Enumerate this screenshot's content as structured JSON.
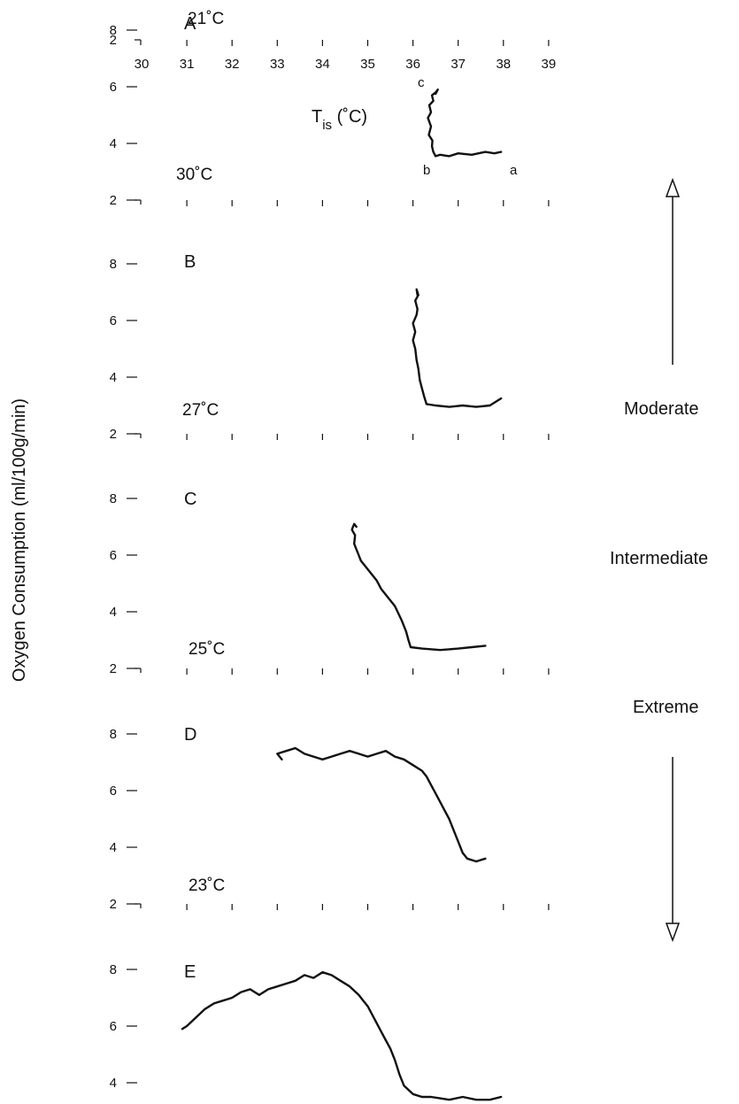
{
  "chart_data": {
    "type": "line",
    "ylabel": "Oxygen Consumption (ml/100g/min)",
    "xlabel": {
      "main": "T",
      "subscript": "is",
      "unit": " (˚C)"
    },
    "x_ticks": [
      "30",
      "31",
      "32",
      "33",
      "34",
      "35",
      "36",
      "37",
      "38",
      "39"
    ],
    "x_range": [
      30,
      39
    ],
    "y_ticks": [
      "2",
      "4",
      "6",
      "8"
    ],
    "y_range": [
      2,
      8.5
    ],
    "grid": false,
    "legend": "none",
    "line_color": "#111111",
    "side_labels": [
      "Moderate",
      "Intermediate",
      "Extreme"
    ],
    "point_labels": [
      "a",
      "b",
      "c"
    ],
    "panels": [
      {
        "letter": "A",
        "ambient": "21˚C",
        "series": [
          {
            "x": [
              37.95,
              37.8,
              37.6,
              37.3,
              37.0,
              36.8,
              36.6,
              36.5,
              36.45,
              36.42,
              36.43,
              36.35,
              36.4,
              36.33,
              36.4,
              36.36,
              36.45,
              36.42,
              36.5,
              36.55,
              36.5
            ],
            "y": [
              3.7,
              3.65,
              3.7,
              3.6,
              3.65,
              3.55,
              3.6,
              3.55,
              3.7,
              3.9,
              4.1,
              4.3,
              4.6,
              4.9,
              5.1,
              5.35,
              5.5,
              5.7,
              5.8,
              5.9,
              5.75
            ]
          }
        ]
      },
      {
        "letter": "B",
        "ambient": "30˚C",
        "series": [
          {
            "x": [
              37.95,
              37.7,
              37.4,
              37.1,
              36.8,
              36.5,
              36.3,
              36.25,
              36.2,
              36.15,
              36.12,
              36.08,
              36.05,
              36.0,
              36.05,
              36.0,
              36.08,
              36.1,
              36.05,
              36.12,
              36.08,
              36.1
            ],
            "y": [
              3.25,
              3.0,
              2.95,
              3.0,
              2.95,
              3.0,
              3.05,
              3.3,
              3.6,
              3.9,
              4.3,
              4.6,
              5.0,
              5.3,
              5.6,
              5.9,
              6.2,
              6.4,
              6.7,
              6.9,
              7.1,
              6.9
            ]
          }
        ]
      },
      {
        "letter": "C",
        "ambient": "27˚C",
        "series": [
          {
            "x": [
              37.6,
              37.3,
              37.0,
              36.6,
              36.2,
              35.95,
              35.9,
              35.85,
              35.75,
              35.6,
              35.5,
              35.4,
              35.3,
              35.2,
              35.1,
              35.0,
              34.95,
              34.85,
              34.8,
              34.75,
              34.7,
              34.72,
              34.65,
              34.7,
              34.75
            ],
            "y": [
              2.8,
              2.75,
              2.7,
              2.65,
              2.7,
              2.75,
              3.0,
              3.3,
              3.7,
              4.2,
              4.4,
              4.6,
              4.8,
              5.1,
              5.3,
              5.5,
              5.6,
              5.8,
              6.0,
              6.2,
              6.4,
              6.7,
              6.9,
              7.1,
              7.0
            ]
          }
        ]
      },
      {
        "letter": "D",
        "ambient": "25˚C",
        "series": [
          {
            "x": [
              37.6,
              37.4,
              37.2,
              37.1,
              37.0,
              36.9,
              36.8,
              36.7,
              36.6,
              36.5,
              36.4,
              36.3,
              36.2,
              36.0,
              35.8,
              35.6,
              35.4,
              35.2,
              35.0,
              34.8,
              34.6,
              34.4,
              34.2,
              34.0,
              33.8,
              33.6,
              33.4,
              33.2,
              33.0,
              33.1
            ],
            "y": [
              3.6,
              3.5,
              3.6,
              3.8,
              4.2,
              4.6,
              5.0,
              5.3,
              5.6,
              5.9,
              6.2,
              6.5,
              6.7,
              6.9,
              7.1,
              7.2,
              7.4,
              7.3,
              7.2,
              7.3,
              7.4,
              7.3,
              7.2,
              7.1,
              7.2,
              7.3,
              7.5,
              7.4,
              7.3,
              7.1
            ]
          }
        ]
      },
      {
        "letter": "E",
        "ambient": "23˚C",
        "series": [
          {
            "x": [
              37.95,
              37.7,
              37.4,
              37.1,
              36.8,
              36.6,
              36.4,
              36.2,
              36.0,
              35.8,
              35.7,
              35.6,
              35.5,
              35.4,
              35.3,
              35.2,
              35.1,
              35.0,
              34.9,
              34.8,
              34.6,
              34.4,
              34.2,
              34.0,
              33.8,
              33.6,
              33.4,
              33.2,
              33.0,
              32.8,
              32.6,
              32.4,
              32.2,
              32.0,
              31.8,
              31.6,
              31.4,
              31.2,
              31.0,
              30.9
            ],
            "y": [
              3.5,
              3.4,
              3.4,
              3.5,
              3.4,
              3.45,
              3.5,
              3.5,
              3.6,
              3.9,
              4.3,
              4.8,
              5.2,
              5.5,
              5.8,
              6.1,
              6.4,
              6.7,
              6.9,
              7.1,
              7.4,
              7.6,
              7.8,
              7.9,
              7.7,
              7.8,
              7.6,
              7.5,
              7.4,
              7.3,
              7.1,
              7.3,
              7.2,
              7.0,
              6.9,
              6.8,
              6.6,
              6.3,
              6.0,
              5.9
            ]
          }
        ]
      }
    ]
  }
}
